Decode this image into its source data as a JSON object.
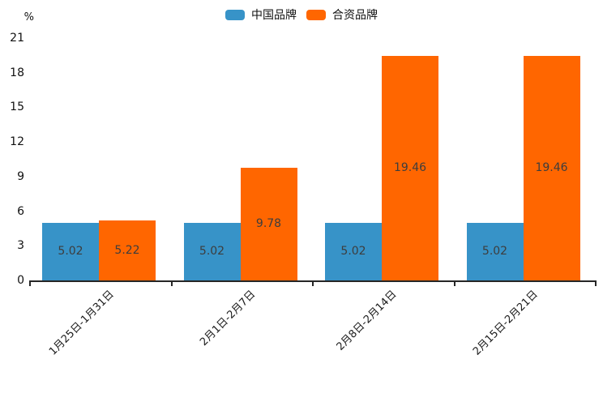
{
  "chart_data": {
    "type": "bar",
    "title": "",
    "xlabel": "",
    "ylabel": "%",
    "ylim": [
      0,
      21
    ],
    "yticks": [
      0,
      3,
      6,
      9,
      12,
      15,
      18,
      21
    ],
    "grid": false,
    "legend_position": "top",
    "categories": [
      "1月25日-1月31日",
      "2月1日-2月7日",
      "2月8日-2月14日",
      "2月15日-2月21日"
    ],
    "series": [
      {
        "name": "中国品牌",
        "color": "#3793C8",
        "values": [
          5.02,
          5.02,
          5.02,
          5.02
        ]
      },
      {
        "name": "合资品牌",
        "color": "#FF6600",
        "values": [
          5.22,
          9.78,
          19.46,
          19.46
        ]
      }
    ],
    "bar_label_color": "#3d3d3d",
    "axis_color": "#262626"
  }
}
